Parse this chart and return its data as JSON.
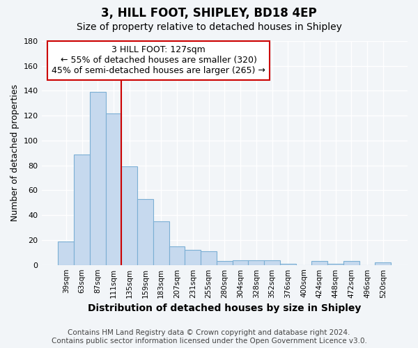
{
  "title": "3, HILL FOOT, SHIPLEY, BD18 4EP",
  "subtitle": "Size of property relative to detached houses in Shipley",
  "xlabel": "Distribution of detached houses by size in Shipley",
  "ylabel": "Number of detached properties",
  "categories": [
    "39sqm",
    "63sqm",
    "87sqm",
    "111sqm",
    "135sqm",
    "159sqm",
    "183sqm",
    "207sqm",
    "231sqm",
    "255sqm",
    "280sqm",
    "304sqm",
    "328sqm",
    "352sqm",
    "376sqm",
    "400sqm",
    "424sqm",
    "448sqm",
    "472sqm",
    "496sqm",
    "520sqm"
  ],
  "values": [
    19,
    89,
    139,
    122,
    79,
    53,
    35,
    15,
    12,
    11,
    3,
    4,
    4,
    4,
    1,
    0,
    3,
    1,
    3,
    0,
    2
  ],
  "bar_color": "#c6d9ee",
  "bar_edge_color": "#7bafd4",
  "vline_x": 3.5,
  "vline_color": "#cc0000",
  "annotation_line1": "3 HILL FOOT: 127sqm",
  "annotation_line2": "← 55% of detached houses are smaller (320)",
  "annotation_line3": "45% of semi-detached houses are larger (265) →",
  "annotation_box_color": "white",
  "annotation_box_edge_color": "#cc0000",
  "ylim": [
    0,
    180
  ],
  "yticks": [
    0,
    20,
    40,
    60,
    80,
    100,
    120,
    140,
    160,
    180
  ],
  "footer_line1": "Contains HM Land Registry data © Crown copyright and database right 2024.",
  "footer_line2": "Contains public sector information licensed under the Open Government Licence v3.0.",
  "bg_color": "#f2f5f8",
  "grid_color": "#ffffff",
  "title_fontsize": 12,
  "subtitle_fontsize": 10,
  "xlabel_fontsize": 10,
  "ylabel_fontsize": 9,
  "footer_fontsize": 7.5,
  "annot_fontsize": 9
}
